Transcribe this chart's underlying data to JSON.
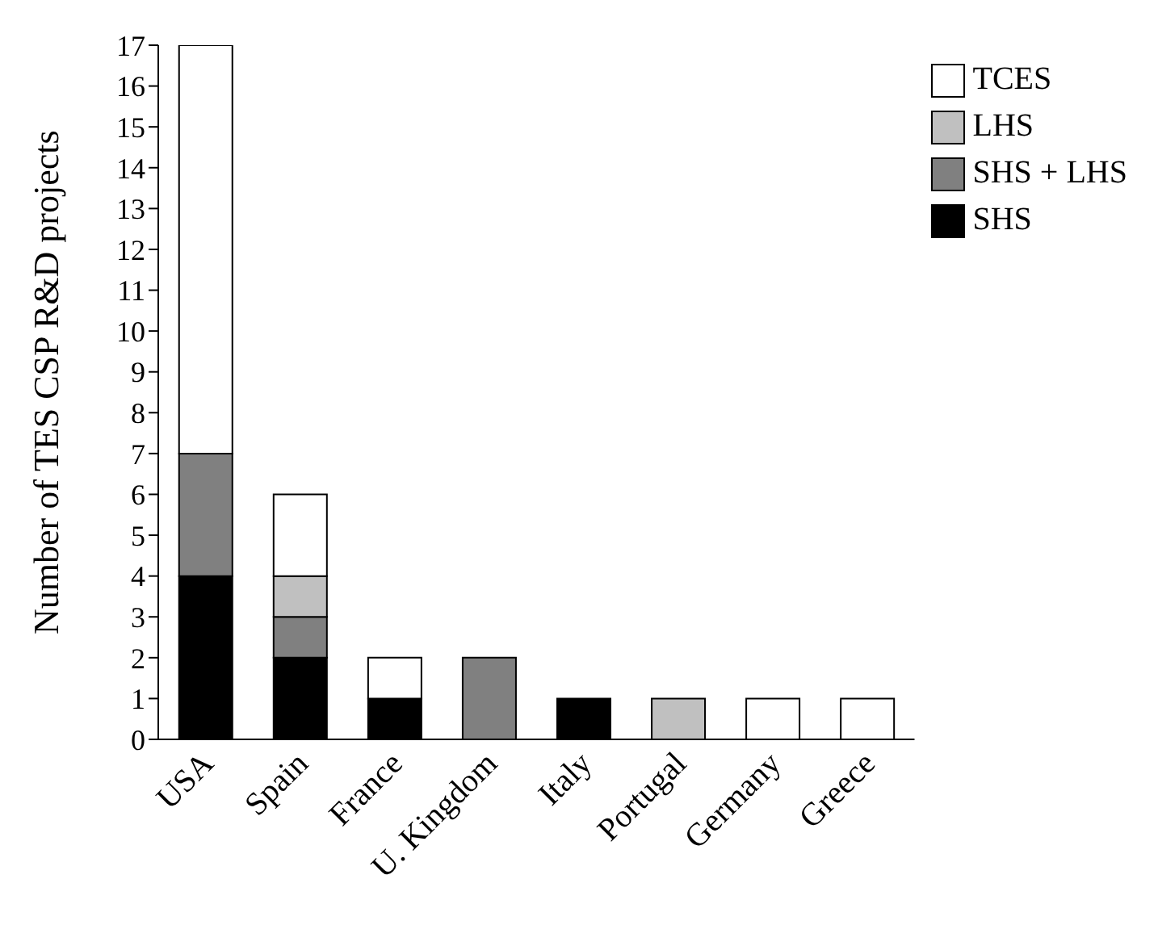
{
  "chart_data": {
    "type": "bar",
    "stacked": true,
    "ylabel": "Number of TES CSP R&D projects",
    "categories": [
      "USA",
      "Spain",
      "France",
      "U. Kingdom",
      "Italy",
      "Portugal",
      "Germany",
      "Greece"
    ],
    "series": [
      {
        "name": "SHS",
        "color": "#000000",
        "values": [
          4,
          2,
          1,
          0,
          1,
          0,
          0,
          0
        ]
      },
      {
        "name": "SHS + LHS",
        "color": "#808080",
        "values": [
          3,
          1,
          0,
          2,
          0,
          0,
          0,
          0
        ]
      },
      {
        "name": "LHS",
        "color": "#c0c0c0",
        "values": [
          0,
          1,
          0,
          0,
          0,
          1,
          0,
          0
        ]
      },
      {
        "name": "TCES",
        "color": "#ffffff",
        "values": [
          10,
          2,
          1,
          0,
          0,
          0,
          1,
          1
        ]
      }
    ],
    "ylim": [
      0,
      17
    ],
    "yticks": [
      0,
      1,
      2,
      3,
      4,
      5,
      6,
      7,
      8,
      9,
      10,
      11,
      12,
      13,
      14,
      15,
      16,
      17
    ],
    "grid": false,
    "legend": "top right"
  }
}
